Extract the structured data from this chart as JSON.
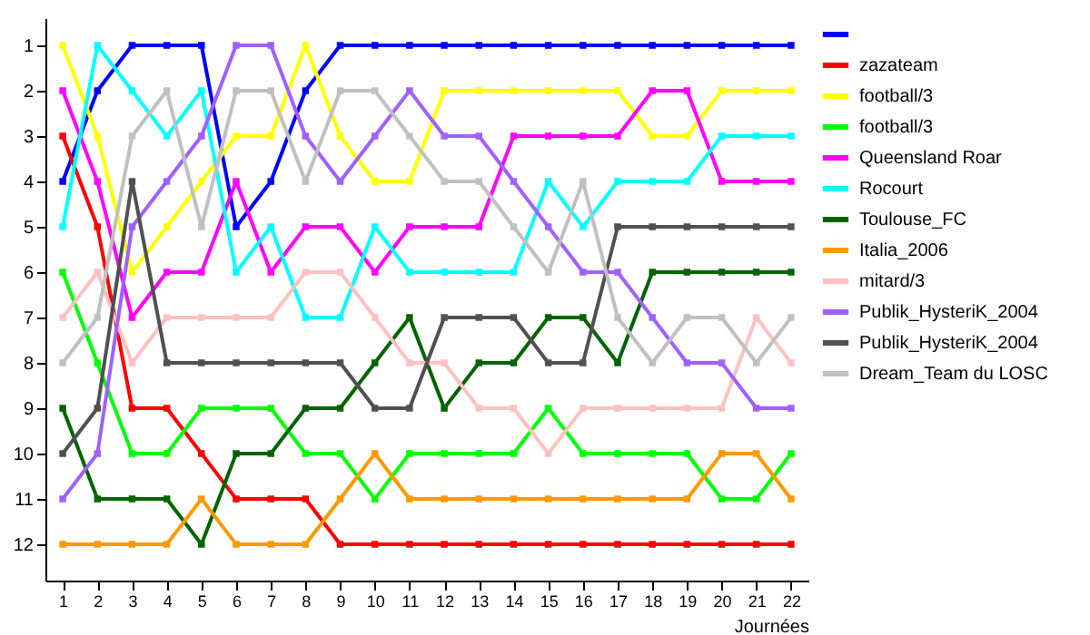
{
  "chart_data": {
    "type": "line",
    "xlabel": "Journées",
    "x": [
      1,
      2,
      3,
      4,
      5,
      6,
      7,
      8,
      9,
      10,
      11,
      12,
      13,
      14,
      15,
      16,
      17,
      18,
      19,
      20,
      21,
      22
    ],
    "series": [
      {
        "color": "#0000ff",
        "values": [
          4,
          2,
          1,
          1,
          1,
          5,
          4,
          2,
          1,
          1,
          1,
          1,
          1,
          1,
          1,
          1,
          1,
          1,
          1,
          1,
          1,
          1
        ]
      },
      {
        "name": "zazateam",
        "color": "#ff0000",
        "values": [
          3,
          5,
          9,
          9,
          10,
          11,
          11,
          11,
          12,
          12,
          12,
          12,
          12,
          12,
          12,
          12,
          12,
          12,
          12,
          12,
          12,
          12
        ]
      },
      {
        "name": "football/3",
        "color": "#ffff00",
        "values": [
          1,
          3,
          6,
          5,
          4,
          3,
          3,
          1,
          3,
          4,
          4,
          2,
          2,
          2,
          2,
          2,
          2,
          3,
          3,
          2,
          2,
          2
        ]
      },
      {
        "name": "football/3",
        "color": "#00ff00",
        "values": [
          6,
          8,
          10,
          10,
          9,
          9,
          9,
          10,
          10,
          11,
          10,
          10,
          10,
          10,
          9,
          10,
          10,
          10,
          10,
          11,
          11,
          10
        ]
      },
      {
        "name": "Queensland Roar",
        "color": "#ff00ff",
        "values": [
          2,
          4,
          7,
          6,
          6,
          4,
          6,
          5,
          5,
          6,
          5,
          5,
          5,
          3,
          3,
          3,
          3,
          2,
          2,
          4,
          4,
          4
        ]
      },
      {
        "name": "Rocourt",
        "color": "#00ffff",
        "values": [
          5,
          1,
          2,
          3,
          2,
          6,
          5,
          7,
          7,
          5,
          6,
          6,
          6,
          6,
          4,
          5,
          4,
          4,
          4,
          3,
          3,
          3
        ]
      },
      {
        "name": "Toulouse_FC",
        "color": "#006400",
        "values": [
          9,
          11,
          11,
          11,
          12,
          10,
          10,
          9,
          9,
          8,
          7,
          9,
          8,
          8,
          7,
          7,
          8,
          6,
          6,
          6,
          6,
          6
        ]
      },
      {
        "name": "Italia_2006",
        "color": "#ff9900",
        "values": [
          12,
          12,
          12,
          12,
          11,
          12,
          12,
          12,
          11,
          10,
          11,
          11,
          11,
          11,
          11,
          11,
          11,
          11,
          11,
          10,
          10,
          11
        ]
      },
      {
        "name": "mitard/3",
        "color": "#ffc0c0",
        "values": [
          7,
          6,
          8,
          7,
          7,
          7,
          7,
          6,
          6,
          7,
          8,
          8,
          9,
          9,
          10,
          9,
          9,
          9,
          9,
          9,
          7,
          8
        ]
      },
      {
        "name": "Publik_HysteriK_2004",
        "color": "#a060ff",
        "values": [
          11,
          10,
          5,
          4,
          3,
          1,
          1,
          3,
          4,
          3,
          2,
          3,
          3,
          4,
          5,
          6,
          6,
          7,
          8,
          8,
          9,
          9
        ]
      },
      {
        "name": "Publik_HysteriK_2004",
        "color": "#505050",
        "values": [
          10,
          9,
          4,
          8,
          8,
          8,
          8,
          8,
          8,
          9,
          9,
          7,
          7,
          7,
          8,
          8,
          5,
          5,
          5,
          5,
          5,
          5
        ]
      },
      {
        "name": "Dream_Team du LOSC",
        "color": "#c0c0c0",
        "values": [
          8,
          7,
          3,
          2,
          5,
          2,
          2,
          4,
          2,
          2,
          3,
          4,
          4,
          5,
          6,
          4,
          7,
          8,
          7,
          7,
          8,
          7
        ]
      }
    ],
    "xlim": [
      0.5,
      22.5
    ],
    "xticks": [
      1,
      2,
      3,
      4,
      5,
      6,
      7,
      8,
      9,
      10,
      11,
      12,
      13,
      14,
      15,
      16,
      17,
      18,
      19,
      20,
      21,
      22
    ],
    "ylim": [
      12.8,
      0.4
    ],
    "yticks": [
      1,
      2,
      3,
      4,
      5,
      6,
      7,
      8,
      9,
      10,
      11,
      12
    ],
    "grid": false,
    "legend": "right",
    "marker": "square",
    "line_style": "solid"
  }
}
